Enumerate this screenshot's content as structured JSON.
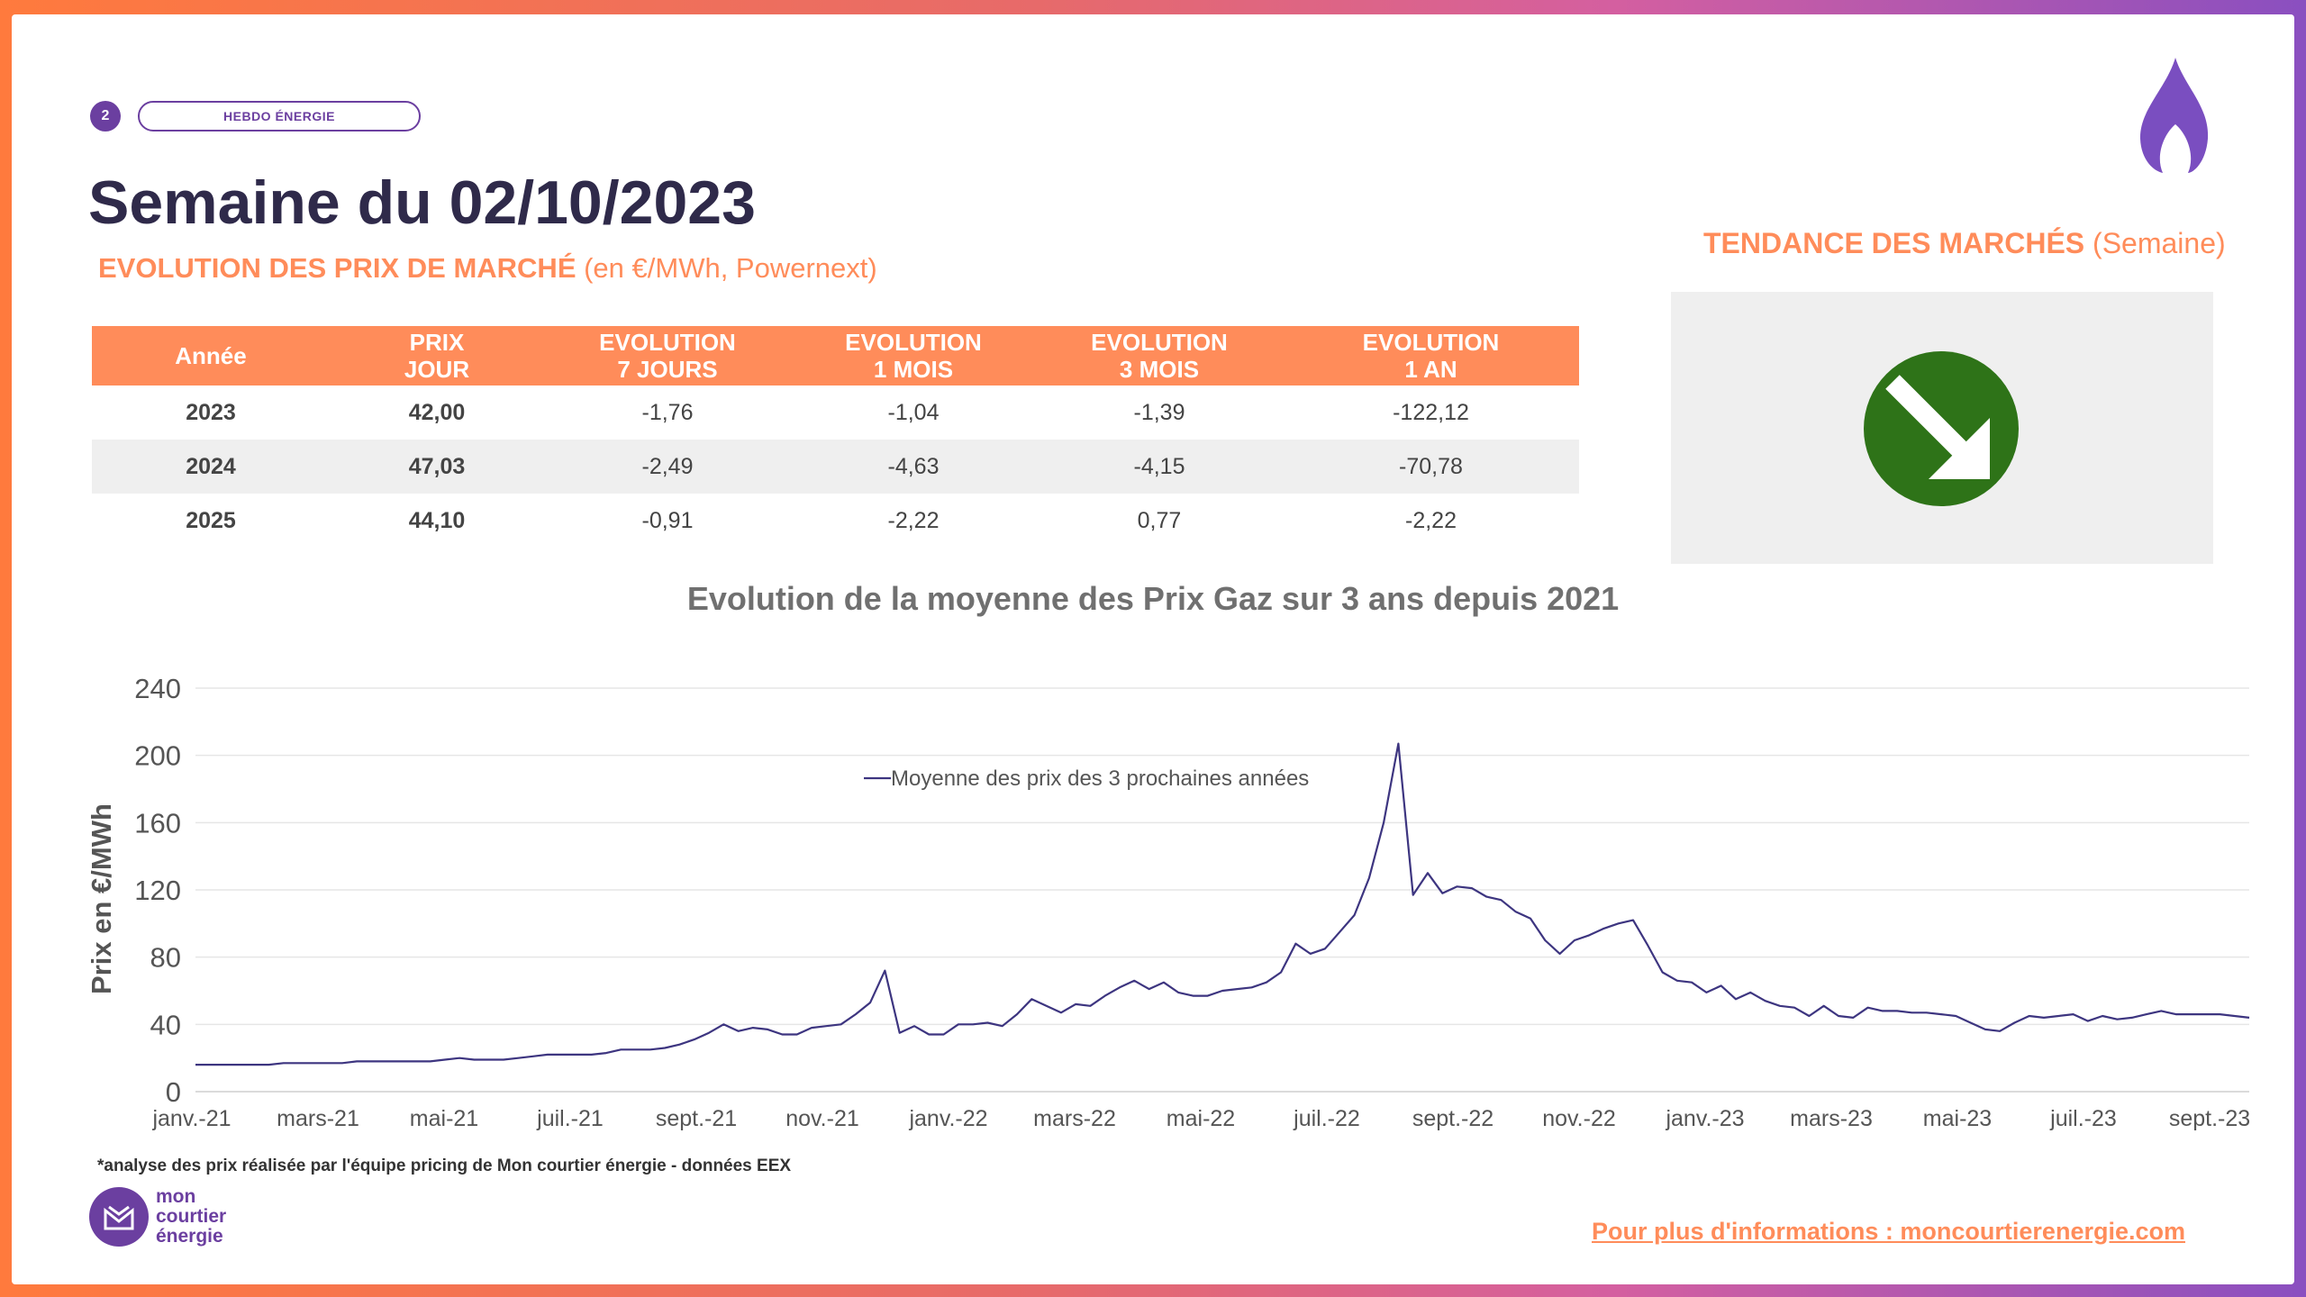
{
  "header": {
    "page_number": "2",
    "tag": "HEBDO ÉNERGIE",
    "title": "Semaine du 02/10/2023"
  },
  "section": {
    "subtitle_bold": "EVOLUTION DES PRIX DE MARCHÉ",
    "subtitle_rest": " (en €/MWh, Powernext)"
  },
  "trend": {
    "title_bold": "TENDANCE DES MARCHÉS",
    "title_rest": " (Semaine)",
    "direction": "down",
    "color": "#2e7318"
  },
  "table": {
    "headers": [
      [
        "Année"
      ],
      [
        "PRIX",
        "JOUR"
      ],
      [
        "EVOLUTION",
        "7 JOURS"
      ],
      [
        "EVOLUTION",
        "1 MOIS"
      ],
      [
        "EVOLUTION",
        "3 MOIS"
      ],
      [
        "EVOLUTION",
        "1 AN"
      ]
    ],
    "rows": [
      [
        "2023",
        "42,00",
        "-1,76",
        "-1,04",
        "-1,39",
        "-122,12"
      ],
      [
        "2024",
        "47,03",
        "-2,49",
        "-4,63",
        "-4,15",
        "-70,78"
      ],
      [
        "2025",
        "44,10",
        "-0,91",
        "-2,22",
        "0,77",
        "-2,22"
      ]
    ]
  },
  "chart_data": {
    "type": "line",
    "title": "Evolution de la moyenne des Prix Gaz sur 3 ans depuis 2021",
    "ylabel": "Prix en €/MWh",
    "xlabel": "",
    "ylim": [
      0,
      240
    ],
    "yticks": [
      "0",
      "40",
      "80",
      "120",
      "160",
      "200",
      "240"
    ],
    "xticks": [
      "janv.-21",
      "mars-21",
      "mai-21",
      "juil.-21",
      "sept.-21",
      "nov.-21",
      "janv.-22",
      "mars-22",
      "mai-22",
      "juil.-22",
      "sept.-22",
      "nov.-22",
      "janv.-23",
      "mars-23",
      "mai-23",
      "juil.-23",
      "sept.-23"
    ],
    "grid": true,
    "legend": "top-center",
    "color": "#3d3580",
    "series": [
      {
        "name": "Moyenne des prix des 3 prochaines années",
        "values": [
          16,
          16,
          16,
          16,
          16,
          16,
          17,
          17,
          17,
          17,
          17,
          18,
          18,
          18,
          18,
          18,
          18,
          19,
          20,
          19,
          19,
          19,
          20,
          21,
          22,
          22,
          22,
          22,
          23,
          25,
          25,
          25,
          26,
          28,
          31,
          35,
          40,
          36,
          38,
          37,
          34,
          34,
          38,
          39,
          40,
          46,
          53,
          72,
          35,
          39,
          34,
          34,
          40,
          40,
          41,
          39,
          46,
          55,
          51,
          47,
          52,
          51,
          57,
          62,
          66,
          61,
          65,
          59,
          57,
          57,
          60,
          61,
          62,
          65,
          71,
          88,
          82,
          85,
          95,
          105,
          127,
          160,
          207,
          117,
          130,
          118,
          122,
          121,
          116,
          114,
          107,
          103,
          90,
          82,
          90,
          93,
          97,
          100,
          102,
          87,
          71,
          66,
          65,
          59,
          63,
          55,
          59,
          54,
          51,
          50,
          45,
          51,
          45,
          44,
          50,
          48,
          48,
          47,
          47,
          46,
          45,
          41,
          37,
          36,
          41,
          45,
          44,
          45,
          46,
          42,
          45,
          43,
          44,
          46,
          48,
          46,
          46,
          46,
          46,
          45,
          44
        ]
      }
    ]
  },
  "footer": {
    "footnote": "*analyse des prix réalisée par l'équipe pricing de Mon courtier énergie -  données EEX",
    "logo_line1": "mon",
    "logo_line2": "courtier",
    "logo_line3": "énergie",
    "link": "Pour plus d'informations : moncourtierenergie.com"
  }
}
